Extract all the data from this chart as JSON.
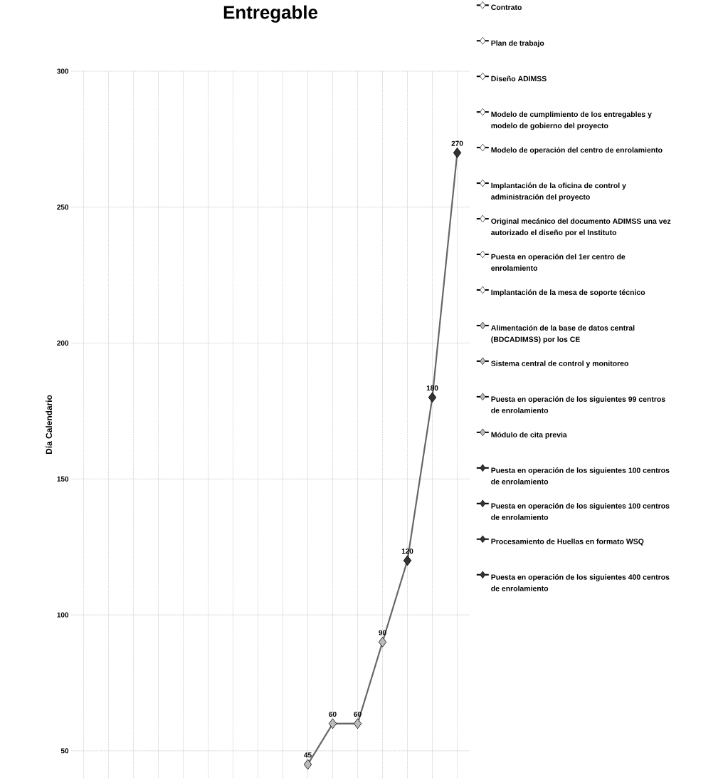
{
  "chart_data": {
    "type": "line",
    "title": "Entregable",
    "ylabel": "Día Calendario",
    "categories": [
      null,
      null,
      null,
      null,
      null,
      null,
      null,
      null,
      null,
      null,
      null,
      null,
      null,
      null,
      null,
      null
    ],
    "ylim": [
      40,
      300
    ],
    "yticks": [
      50,
      100,
      150,
      200,
      250,
      300
    ],
    "grid": true,
    "legend": "right",
    "marker": "diamond",
    "line_style": "solid",
    "data_labels": true,
    "tick_labels": "y",
    "series": [
      {
        "name": "Contrato",
        "color": "#ffffff",
        "values": [
          null,
          null,
          null,
          null,
          null,
          null,
          null,
          null,
          null,
          null,
          null,
          null,
          null,
          null,
          null,
          null
        ]
      },
      {
        "name": "Plan de trabajo",
        "color": "#ffffff",
        "values": [
          null,
          null,
          null,
          null,
          null,
          null,
          null,
          null,
          null,
          null,
          null,
          null,
          null,
          null,
          null,
          null
        ]
      },
      {
        "name": "Diseño ADIMSS",
        "color": "#ffffff",
        "values": [
          null,
          null,
          null,
          null,
          null,
          null,
          null,
          null,
          null,
          null,
          null,
          null,
          null,
          null,
          null,
          null
        ]
      },
      {
        "name": "Modelo de cumplimiento de los entregables y modelo de gobierno del proyecto",
        "color": "#ffffff",
        "values": [
          null,
          null,
          null,
          null,
          null,
          null,
          null,
          null,
          null,
          null,
          null,
          null,
          null,
          null,
          null,
          null
        ]
      },
      {
        "name": "Modelo de operación del centro de enrolamiento",
        "color": "#ffffff",
        "values": [
          null,
          null,
          null,
          null,
          null,
          null,
          null,
          null,
          null,
          null,
          null,
          null,
          null,
          null,
          null,
          null
        ]
      },
      {
        "name": "Implantación de la oficina de control y administración del proyecto",
        "color": "#ffffff",
        "values": [
          null,
          null,
          null,
          null,
          null,
          null,
          null,
          null,
          null,
          null,
          null,
          null,
          null,
          null,
          null,
          null
        ]
      },
      {
        "name": "Original mecánico del documento ADIMSS una vez autorizado el diseño por el Instituto",
        "color": "#ffffff",
        "values": [
          null,
          null,
          null,
          null,
          null,
          null,
          null,
          null,
          null,
          null,
          null,
          null,
          null,
          null,
          null,
          null
        ]
      },
      {
        "name": "Puesta en operación del 1er centro de enrolamiento",
        "color": "#ffffff",
        "values": [
          null,
          null,
          null,
          null,
          null,
          null,
          null,
          null,
          null,
          null,
          null,
          null,
          null,
          null,
          null,
          null
        ]
      },
      {
        "name": "Implantación de la mesa de soporte técnico",
        "color": "#ffffff",
        "values": [
          null,
          null,
          null,
          null,
          null,
          null,
          null,
          null,
          null,
          null,
          null,
          null,
          null,
          null,
          null,
          null
        ]
      },
      {
        "name": "Alimentación de la base de datos central (BDCADIMSS) por los CE",
        "color": "#bbbbbb",
        "values": [
          null,
          null,
          null,
          null,
          null,
          null,
          null,
          null,
          null,
          45,
          null,
          null,
          null,
          null,
          null,
          null
        ]
      },
      {
        "name": "Sistema central de control y monitoreo",
        "color": "#bbbbbb",
        "values": [
          null,
          null,
          null,
          null,
          null,
          null,
          null,
          null,
          null,
          null,
          60,
          null,
          null,
          null,
          null,
          null
        ]
      },
      {
        "name": "Puesta en operación de los siguientes 99 centros de enrolamiento",
        "color": "#bbbbbb",
        "values": [
          null,
          null,
          null,
          null,
          null,
          null,
          null,
          null,
          null,
          null,
          null,
          60,
          null,
          null,
          null,
          null
        ]
      },
      {
        "name": "Módulo de cita previa",
        "color": "#bbbbbb",
        "values": [
          null,
          null,
          null,
          null,
          null,
          null,
          null,
          null,
          null,
          null,
          null,
          null,
          90,
          null,
          null,
          null
        ]
      },
      {
        "name": "Puesta en operación de los siguientes 100 centros de enrolamiento",
        "color": "#333333",
        "values": [
          null,
          null,
          null,
          null,
          null,
          null,
          null,
          null,
          null,
          null,
          null,
          null,
          null,
          120,
          null,
          null
        ]
      },
      {
        "name": "Puesta en operación de los siguientes 100 centros de enrolamiento",
        "color": "#333333",
        "values": [
          null,
          null,
          null,
          null,
          null,
          null,
          null,
          null,
          null,
          null,
          null,
          null,
          null,
          null,
          180,
          null
        ]
      },
      {
        "name": "Procesamiento de Huellas en formato WSQ",
        "color": "#333333",
        "values": [
          null,
          null,
          null,
          null,
          null,
          null,
          null,
          null,
          null,
          null,
          null,
          null,
          null,
          null,
          null,
          270
        ]
      },
      {
        "name": "Puesta en operación de los siguientes 400 centros de enrolamiento",
        "color": "#333333",
        "values": [
          null,
          null,
          null,
          null,
          null,
          null,
          null,
          null,
          null,
          null,
          null,
          null,
          null,
          null,
          null,
          null
        ]
      }
    ]
  }
}
